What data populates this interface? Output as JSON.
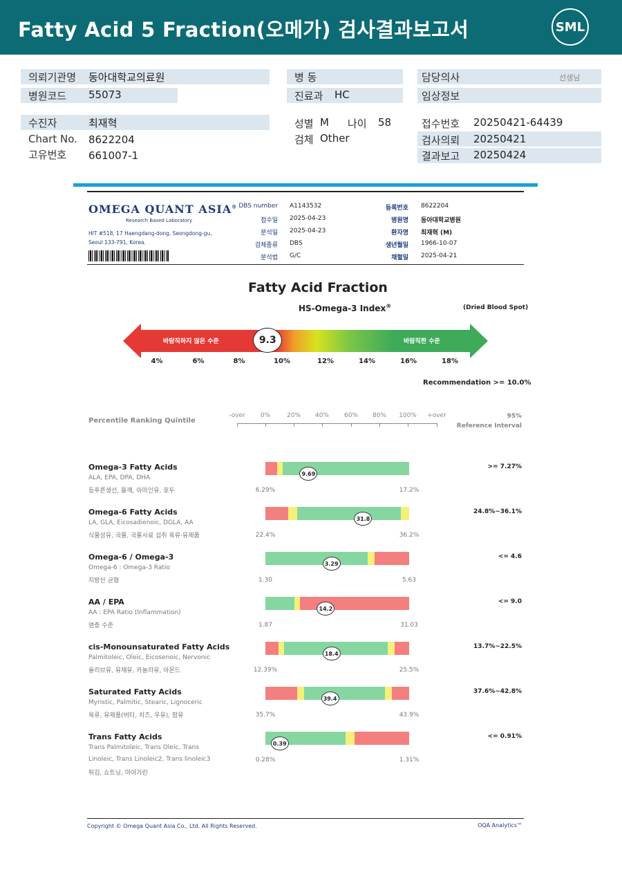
{
  "header": {
    "title": "Fatty Acid 5 Fraction(오메가) 검사결과보고서",
    "logo": "SML"
  },
  "patient": {
    "institution_label": "의뢰기관명",
    "institution": "동아대학교의료원",
    "hospital_code_label": "병원코드",
    "hospital_code": "55073",
    "ward_label": "병 동",
    "dept_label": "진료과",
    "dept": "HC",
    "doctor_label": "담당의사",
    "doctor_suffix": "선생님",
    "clinical_label": "임상정보",
    "name_label": "수진자",
    "name": "최재혁",
    "chart_label": "Chart No.",
    "chart": "8622204",
    "uid_label": "고유번호",
    "uid": "661007-1",
    "sex_label": "성별",
    "sex": "M",
    "age_label": "나이",
    "age": "58",
    "specimen_label": "검체",
    "specimen": "Other",
    "receipt_label": "접수번호",
    "receipt": "20250421-64439",
    "req_label": "검사의뢰",
    "req": "20250421",
    "report_label": "결과보고",
    "report": "20250424"
  },
  "oqa": {
    "logo": "OMEGA QUANT ASIA",
    "reg": "®",
    "sub": "Research Based Laboratory",
    "addr1": "HIT #518, 17 Haengdang-dong, Seongdong-gu,",
    "addr2": "Seoul 133-791, Korea.",
    "meta_left": [
      {
        "label": "DBS number",
        "value": "A1143532"
      },
      {
        "label": "접수일",
        "value": "2025-04-23"
      },
      {
        "label": "분석일",
        "value": "2025-04-23"
      },
      {
        "label": "검체종류",
        "value": "DBS"
      },
      {
        "label": "분석법",
        "value": "G/C"
      }
    ],
    "meta_right": [
      {
        "label": "등록번호",
        "value": "8622204"
      },
      {
        "label": "병원명",
        "value": "동아대학교병원"
      },
      {
        "label": "환자명",
        "value": "최재혁 (M)"
      },
      {
        "label": "생년월일",
        "value": "1966-10-07"
      },
      {
        "label": "채혈일",
        "value": "2025-04-21"
      }
    ]
  },
  "index": {
    "title": "Fatty Acid Fraction",
    "subtitle": "HS-Omega-3 Index",
    "subtitle_mark": "®",
    "note": "(Dried Blood Spot)",
    "value": "9.3",
    "value_num": 9.3,
    "left_label": "바람직하지 않은 수준",
    "right_label": "바람직한 수준",
    "scale": [
      "4%",
      "6%",
      "8%",
      "10%",
      "12%",
      "14%",
      "16%",
      "18%"
    ],
    "recommendation": "Recommendation  >= 10.0%",
    "colors": {
      "red": "#e53935",
      "green": "#3dab5a",
      "yellow": "#d8e21f"
    }
  },
  "percentile": {
    "title": "Percentile Ranking Quintile",
    "ticks": [
      "-over",
      "0%",
      "20%",
      "40%",
      "60%",
      "80%",
      "100%",
      "+over"
    ],
    "ref_title_1": "95%",
    "ref_title_2": "Reference Interval"
  },
  "rows": [
    {
      "title": "Omega-3 Fatty Acids",
      "sub": "ALA, EPA, DPA, DHA",
      "sub2": "",
      "food": "등푸른생선, 들깨, 아마인유, 호두",
      "min": "6.29%",
      "max": "17.2%",
      "ref": ">= 7.27%",
      "value": "9.69",
      "pos": 0.3,
      "segments": [
        {
          "color": "red",
          "w": 0.08
        },
        {
          "color": "yellow",
          "w": 0.04
        },
        {
          "color": "green",
          "w": 0.88
        }
      ]
    },
    {
      "title": "Omega-6 Fatty Acids",
      "sub": "LA, GLA, Eicosadienoic, DGLA, AA",
      "sub2": "",
      "food": "식물성유, 곡물, 곡물사료 섭취 육류·유제품",
      "min": "22.4%",
      "max": "36.2%",
      "ref": "24.8%~36.1%",
      "value": "31.8",
      "pos": 0.68,
      "segments": [
        {
          "color": "red",
          "w": 0.16
        },
        {
          "color": "yellow",
          "w": 0.06
        },
        {
          "color": "green",
          "w": 0.72
        },
        {
          "color": "yellow",
          "w": 0.06
        }
      ]
    },
    {
      "title": "Omega-6 / Omega-3",
      "sub": "Omega-6 : Omega-3 Ratio",
      "sub2": "",
      "food": "지방산 균형",
      "min": "1.30",
      "max": "5.63",
      "ref": "<= 4.6",
      "value": "3.29",
      "pos": 0.46,
      "segments": [
        {
          "color": "green",
          "w": 0.71
        },
        {
          "color": "yellow",
          "w": 0.05
        },
        {
          "color": "red",
          "w": 0.24
        }
      ]
    },
    {
      "title": "AA / EPA",
      "sub": "AA : EPA Ratio (Inflammation)",
      "sub2": "",
      "food": "염증 수준",
      "min": "1.87",
      "max": "31.03",
      "ref": "<= 9.0",
      "value": "14.2",
      "pos": 0.42,
      "segments": [
        {
          "color": "green",
          "w": 0.2
        },
        {
          "color": "yellow",
          "w": 0.04
        },
        {
          "color": "red",
          "w": 0.76
        }
      ]
    },
    {
      "title": "cis-Monounsaturated Fatty Acids",
      "sub": "Palmitoleic, Oleic, Eicosenoic, Nervonic",
      "sub2": "",
      "food": "올리브유, 유채유, 카놀라유, 아몬드",
      "min": "12.39%",
      "max": "25.5%",
      "ref": "13.7%~22.5%",
      "value": "18.4",
      "pos": 0.46,
      "segments": [
        {
          "color": "red",
          "w": 0.09
        },
        {
          "color": "yellow",
          "w": 0.04
        },
        {
          "color": "green",
          "w": 0.72
        },
        {
          "color": "yellow",
          "w": 0.05
        },
        {
          "color": "red",
          "w": 0.1
        }
      ]
    },
    {
      "title": "Saturated Fatty Acids",
      "sub": "Myristic, Palmitic, Stearic, Lignoceric",
      "sub2": "",
      "food": "육류, 유제품(버터, 치즈, 우유), 팜유",
      "min": "35.7%",
      "max": "43.9%",
      "ref": "37.6%~42.8%",
      "value": "39.4",
      "pos": 0.45,
      "segments": [
        {
          "color": "red",
          "w": 0.22
        },
        {
          "color": "yellow",
          "w": 0.05
        },
        {
          "color": "green",
          "w": 0.56
        },
        {
          "color": "yellow",
          "w": 0.05
        },
        {
          "color": "red",
          "w": 0.12
        }
      ]
    },
    {
      "title": "Trans Fatty Acids",
      "sub": "Trans Palmitoleic, Trans Oleic, Trans",
      "sub2": "Linoleic, Trans Linoleic2, Trans linoleic3",
      "food": "튀김, 쇼트닝, 마아가린",
      "min": "0.28%",
      "max": "1.31%",
      "ref": "<= 0.91%",
      "value": "0.39",
      "pos": 0.1,
      "segments": [
        {
          "color": "green",
          "w": 0.56
        },
        {
          "color": "yellow",
          "w": 0.06
        },
        {
          "color": "red",
          "w": 0.38
        }
      ]
    }
  ],
  "footer": {
    "copyright": "Copyright © Omega Quant Asia Co., Ltd.  All Rights Reserved.",
    "brand": "OQA Analytics™"
  }
}
